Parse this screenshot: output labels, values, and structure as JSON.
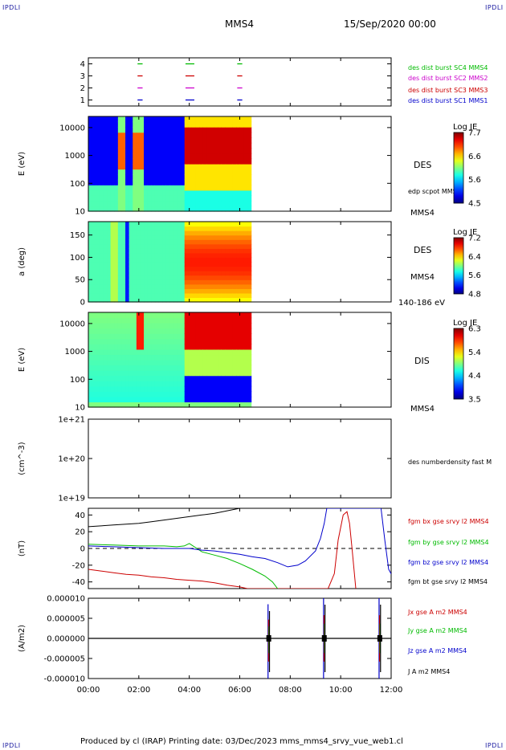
{
  "header": {
    "logo_text": "IPDLI",
    "spacecraft": "MMS4",
    "date": "15/Sep/2020 00:00"
  },
  "footer": {
    "text": "Produced by cl (IRAP)   Printing date: 03/Dec/2023   mms_mms4_srvy_vue_web1.cl"
  },
  "time_axis": {
    "start_hour": 0,
    "end_hour": 12,
    "tick_labels": [
      "00:00",
      "02:00",
      "04:00",
      "06:00",
      "08:00",
      "10:00",
      "12:00"
    ]
  },
  "chart_data": [
    {
      "id": "burst",
      "type": "scatter",
      "y_ticks": [
        "1",
        "2",
        "3",
        "4"
      ],
      "ylim": [
        0.5,
        4.5
      ],
      "series": [
        {
          "name": "des dist burst SC1 MMS1",
          "level": 1,
          "color": "#0000cc",
          "intervals": [
            [
              1.95,
              2.15
            ],
            [
              3.85,
              4.2
            ],
            [
              5.9,
              6.1
            ]
          ]
        },
        {
          "name": "des dist burst SC2 MMS2",
          "level": 2,
          "color": "#cc00cc",
          "intervals": [
            [
              1.95,
              2.15
            ],
            [
              3.85,
              4.2
            ],
            [
              5.9,
              6.1
            ]
          ]
        },
        {
          "name": "des dist burst SC3 MMS3",
          "level": 3,
          "color": "#cc0000",
          "intervals": [
            [
              1.95,
              2.15
            ],
            [
              3.85,
              4.2
            ],
            [
              5.9,
              6.1
            ]
          ]
        },
        {
          "name": "des dist burst SC4 MMS4",
          "level": 4,
          "color": "#00bb00",
          "intervals": [
            [
              1.95,
              2.15
            ],
            [
              3.85,
              4.2
            ],
            [
              5.9,
              6.1
            ]
          ]
        }
      ]
    },
    {
      "id": "des_energy",
      "type": "heatmap",
      "ylabel": "E (eV)",
      "y_ticks": [
        "10",
        "100",
        "1000",
        "10000"
      ],
      "ylim_log10": [
        1,
        4.4
      ],
      "data_end_hour": 6.45,
      "right_labels": [
        "DES",
        "edp scpot MMS4",
        "MMS4"
      ],
      "colorbar": {
        "title": "Log JE",
        "min": 4.5,
        "max": 7.7,
        "ticks": [
          "7.7",
          "6.6",
          "5.6",
          "4.5"
        ]
      }
    },
    {
      "id": "des_pitch",
      "type": "heatmap",
      "ylabel": "a (deg)",
      "y_ticks": [
        "0",
        "50",
        "100",
        "150"
      ],
      "ylim": [
        0,
        180
      ],
      "data_end_hour": 6.45,
      "right_labels": [
        "DES",
        "MMS4",
        "140-186 eV"
      ],
      "colorbar": {
        "title": "Log JE",
        "min": 4.8,
        "max": 7.2,
        "ticks": [
          "7.2",
          "6.4",
          "5.6",
          "4.8"
        ]
      }
    },
    {
      "id": "dis_energy",
      "type": "heatmap",
      "ylabel": "E (eV)",
      "y_ticks": [
        "10",
        "100",
        "1000",
        "10000"
      ],
      "ylim_log10": [
        1,
        4.4
      ],
      "data_end_hour": 6.45,
      "right_labels": [
        "DIS",
        "MMS4"
      ],
      "colorbar": {
        "title": "Log JE",
        "min": 3.5,
        "max": 6.3,
        "ticks": [
          "6.3",
          "5.4",
          "4.4",
          "3.5"
        ]
      }
    },
    {
      "id": "density",
      "type": "line",
      "ylabel": "(cm^-3)",
      "y_ticks": [
        "1e+19",
        "1e+20",
        "1e+21"
      ],
      "ylim_log10": [
        19,
        21
      ],
      "series": [
        {
          "name": "des numberdensity fast M"
        }
      ]
    },
    {
      "id": "fgm",
      "type": "line",
      "ylabel": "(nT)",
      "y_ticks": [
        "-40",
        "-20",
        "0",
        "20",
        "40"
      ],
      "ylim": [
        -48,
        48
      ],
      "series": [
        {
          "name": "fgm bx gse srvy l2 MMS4",
          "color": "#cc0000",
          "x": [
            0,
            0.5,
            1,
            1.5,
            2,
            2.5,
            3,
            3.5,
            4,
            4.5,
            5,
            5.5,
            6,
            6.3,
            9.5,
            9.75,
            9.9,
            10.1,
            10.25,
            10.35,
            10.45,
            10.6
          ],
          "y": [
            -25,
            -27,
            -29,
            -31,
            -32,
            -34,
            -35,
            -37,
            -38,
            -39,
            -41,
            -44,
            -46,
            -48,
            -48,
            -30,
            10,
            40,
            44,
            30,
            0,
            -48
          ]
        },
        {
          "name": "fgm by gse srvy l2 MMS4",
          "color": "#00bb00",
          "x": [
            0,
            1,
            2,
            3,
            3.5,
            3.8,
            4,
            4.5,
            5,
            5.5,
            6,
            6.5,
            7,
            7.3,
            7.5
          ],
          "y": [
            5,
            4,
            3,
            3,
            2,
            3,
            6,
            -4,
            -8,
            -12,
            -18,
            -25,
            -33,
            -40,
            -48
          ]
        },
        {
          "name": "fgm bz gse srvy l2 MMS4",
          "color": "#0000cc",
          "x": [
            0,
            1,
            2,
            3,
            4,
            4.5,
            5,
            5.5,
            6,
            6.5,
            7,
            7.5,
            7.9,
            8.3,
            8.6,
            9,
            9.2,
            9.35,
            9.45,
            11.6,
            11.75,
            11.9,
            12.05,
            12.15
          ],
          "y": [
            3,
            2,
            1,
            0,
            0,
            -2,
            -3,
            -5,
            -7,
            -10,
            -12,
            -17,
            -22,
            -20,
            -15,
            -3,
            12,
            30,
            48,
            48,
            10,
            -25,
            -33,
            -20
          ]
        },
        {
          "name": "fgm bt gse srvy l2 MMS4",
          "color": "#000000",
          "x": [
            0,
            0.5,
            1,
            1.5,
            2,
            2.5,
            3,
            3.5,
            4,
            4.5,
            5,
            5.5,
            6
          ],
          "y": [
            26,
            27,
            28,
            29,
            30,
            32,
            34,
            36,
            38,
            40,
            42,
            45,
            48
          ]
        }
      ]
    },
    {
      "id": "currents",
      "type": "line",
      "ylabel": "(A/m2)",
      "y_ticks": [
        "-0.000010",
        "-0.000005",
        "0.000000",
        "0.000005",
        "0.000010"
      ],
      "ylim": [
        -1e-05,
        1e-05
      ],
      "series": [
        {
          "name": "Jx gse A m2 MMS4",
          "color": "#cc0000"
        },
        {
          "name": "Jy gse A m2 MMS4",
          "color": "#00bb00"
        },
        {
          "name": "Jz gse A m2 MMS4",
          "color": "#0000cc"
        },
        {
          "name": "J A m2 MMS4",
          "color": "#000000"
        }
      ],
      "spikes": [
        {
          "hour": 7.15,
          "max": 8.5e-06,
          "min": -1.05e-05
        },
        {
          "hour": 9.35,
          "max": 1.05e-05,
          "min": -1.05e-05
        },
        {
          "hour": 11.55,
          "max": 1.05e-05,
          "min": -1.05e-05
        }
      ]
    }
  ]
}
